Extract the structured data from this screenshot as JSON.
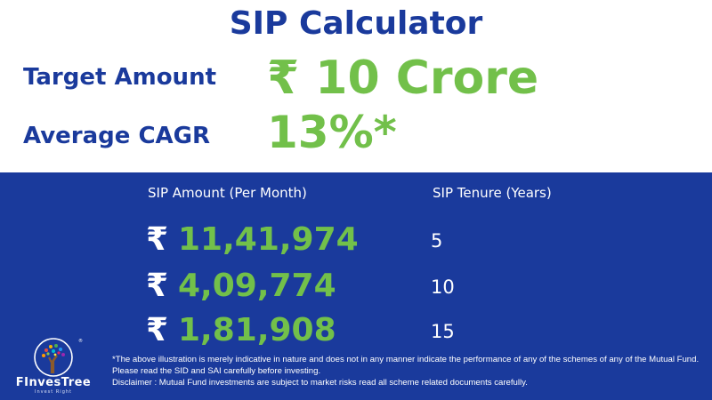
{
  "title": "SIP Calculator",
  "target": {
    "label": "Target Amount",
    "value": "₹ 10 Crore"
  },
  "cagr": {
    "label": "Average CAGR",
    "value": "13%*"
  },
  "table": {
    "headers": {
      "amount": "SIP Amount (Per Month)",
      "tenure": "SIP Tenure (Years)"
    },
    "currency_symbol": "₹",
    "rows": [
      {
        "amount": "11,41,974",
        "tenure": "5"
      },
      {
        "amount": "4,09,774",
        "tenure": "10"
      },
      {
        "amount": "1,81,908",
        "tenure": "15"
      }
    ]
  },
  "logo": {
    "name": "FInvesTree",
    "tagline": "Invest Right"
  },
  "disclaimer": {
    "line1": "*The above illustration is merely indicative in nature and does not in any manner indicate the performance of any of the schemes of any of the Mutual Fund. Please read the SID and SAI carefully before investing.",
    "line2": "Disclaimer : Mutual Fund investments are subject to market risks read all scheme related documents carefully."
  },
  "colors": {
    "brand_blue": "#1a3a9c",
    "accent_green": "#72c04a",
    "white": "#ffffff"
  }
}
